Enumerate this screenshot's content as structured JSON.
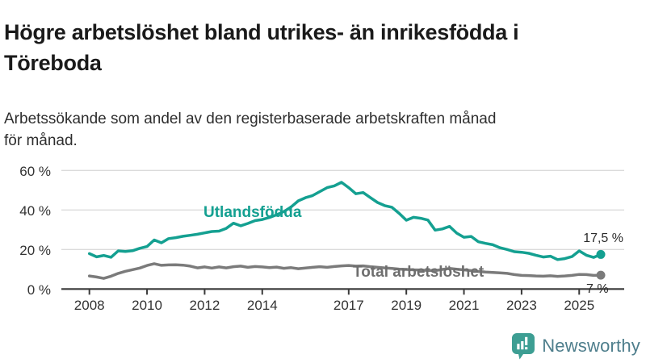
{
  "header": {
    "title_lines": [
      "Högre arbetslöshet bland utrikes- än inrikesfödda i",
      "Töreboda"
    ],
    "subtitle_lines": [
      "Arbetssökande som andel av den registerbaserade arbetskraften månad",
      "för månad."
    ]
  },
  "chart_data": {
    "type": "line",
    "title": "",
    "xlabel": "",
    "ylabel": "",
    "x_start": 2008,
    "x_step": 0.25,
    "x_end": 2025.75,
    "x_ticks": [
      2008,
      2010,
      2012,
      2014,
      2017,
      2019,
      2021,
      2023,
      2025
    ],
    "y_ticks": [
      0,
      20,
      40,
      60
    ],
    "y_tick_suffix": " %",
    "ylim": [
      0,
      62
    ],
    "grid": "horizontal",
    "legend_position": "inline-labels",
    "series": [
      {
        "name": "Utlandsfödda",
        "color": "#14a091",
        "end_label": "17,5 %",
        "end_value": 17.5,
        "values": [
          17.9,
          16.3,
          17.0,
          16.1,
          19.3,
          19.0,
          19.4,
          20.6,
          21.5,
          24.8,
          23.4,
          25.5,
          26.0,
          26.7,
          27.2,
          27.7,
          28.4,
          29.1,
          29.3,
          30.7,
          33.3,
          32.0,
          33.2,
          34.6,
          35.2,
          36.2,
          37.6,
          39.2,
          41.5,
          44.6,
          46.2,
          47.3,
          49.3,
          51.3,
          52.2,
          54.0,
          51.3,
          48.2,
          48.8,
          46.3,
          43.8,
          42.2,
          41.4,
          38.3,
          34.8,
          36.3,
          35.8,
          34.9,
          29.8,
          30.4,
          31.7,
          28.3,
          26.2,
          26.6,
          23.9,
          23.1,
          22.4,
          20.9,
          20.0,
          18.9,
          18.6,
          18.1,
          17.1,
          16.2,
          16.6,
          14.9,
          15.4,
          16.4,
          19.3,
          17.1,
          16.0,
          17.5
        ]
      },
      {
        "name": "Total arbetslöshet",
        "color": "#7b7b7b",
        "label_color": "#6e6e6e",
        "end_label": "7 %",
        "end_value": 7,
        "values": [
          6.6,
          6.1,
          5.4,
          6.5,
          7.9,
          9.0,
          9.8,
          10.6,
          11.9,
          12.8,
          12.0,
          12.2,
          12.3,
          12.1,
          11.6,
          10.7,
          11.2,
          10.6,
          11.2,
          10.7,
          11.3,
          11.6,
          11.0,
          11.4,
          11.2,
          10.8,
          11.1,
          10.5,
          10.8,
          10.3,
          10.6,
          11.0,
          11.3,
          11.0,
          11.4,
          11.7,
          11.9,
          11.6,
          11.7,
          11.3,
          11.0,
          10.7,
          10.4,
          10.1,
          9.9,
          9.7,
          9.6,
          9.4,
          9.3,
          9.9,
          10.4,
          10.0,
          9.7,
          9.3,
          8.9,
          8.6,
          8.4,
          8.2,
          7.9,
          7.3,
          6.9,
          6.8,
          6.6,
          6.5,
          6.7,
          6.4,
          6.6,
          6.9,
          7.4,
          7.3,
          6.9,
          7.0
        ]
      }
    ]
  },
  "footer": {
    "brand": "Newsworthy"
  },
  "colors": {
    "accent_teal": "#14a091",
    "line_gray": "#7b7b7b",
    "axis": "#3a3a3a",
    "gridline": "#dbdbdb",
    "tick_text": "#333333",
    "value_label_text": "#2b2b2b",
    "brand_mark": "#3d9e93",
    "brand_text": "#4e7e8c"
  }
}
